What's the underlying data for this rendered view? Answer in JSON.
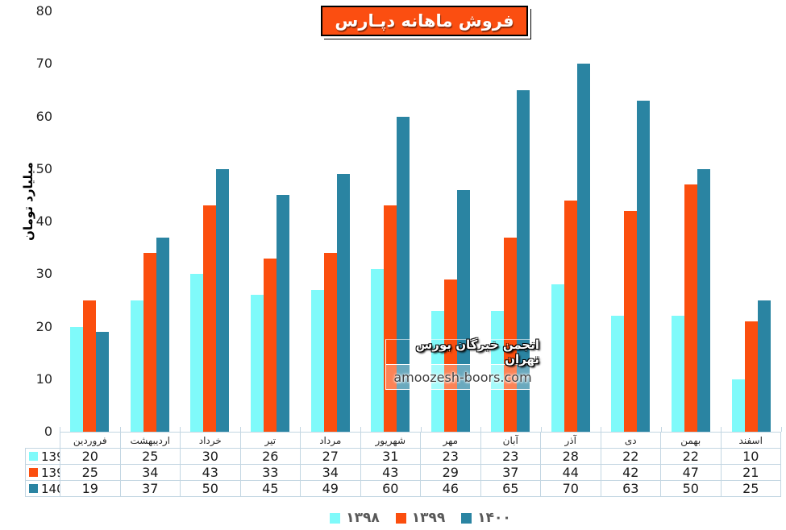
{
  "title": "فروش ماهانه دپـارس",
  "watermark": {
    "line1": "انجمن خبرگان بورس تهران",
    "line2": "amoozesh-boors.com"
  },
  "colors": {
    "title_background": "#FB4E11",
    "series_1398": "#7FFAFA",
    "series_1399": "#FB4E0E",
    "series_1400": "#2A84A2",
    "table_border": "#C3D6E2",
    "legend_text": "#595959"
  },
  "chart_data": {
    "type": "bar",
    "title": "فروش ماهانه دپـارس",
    "xlabel": "",
    "ylabel": "میلیارد تومان",
    "ylim": [
      0,
      80
    ],
    "yticks": [
      0,
      10,
      20,
      30,
      40,
      50,
      60,
      70,
      80
    ],
    "grid": false,
    "legend_position": "bottom",
    "data_table_shown": true,
    "categories": [
      "فروردین",
      "اردیبهشت",
      "خرداد",
      "تیر",
      "مرداد",
      "شهریور",
      "مهر",
      "آبان",
      "آذر",
      "دی",
      "بهمن",
      "اسفند"
    ],
    "series": [
      {
        "name": "1398",
        "legend_label": "۱۳۹۸",
        "color": "#7FFAFA",
        "values": [
          20,
          25,
          30,
          26,
          27,
          31,
          23,
          23,
          28,
          22,
          22,
          10
        ]
      },
      {
        "name": "1399",
        "legend_label": "۱۳۹۹",
        "color": "#FB4E0E",
        "values": [
          25,
          34,
          43,
          33,
          34,
          43,
          29,
          37,
          44,
          42,
          47,
          21
        ]
      },
      {
        "name": "1400",
        "legend_label": "۱۴۰۰",
        "color": "#2A84A2",
        "values": [
          19,
          37,
          50,
          45,
          49,
          60,
          46,
          65,
          70,
          63,
          50,
          25
        ]
      }
    ]
  }
}
